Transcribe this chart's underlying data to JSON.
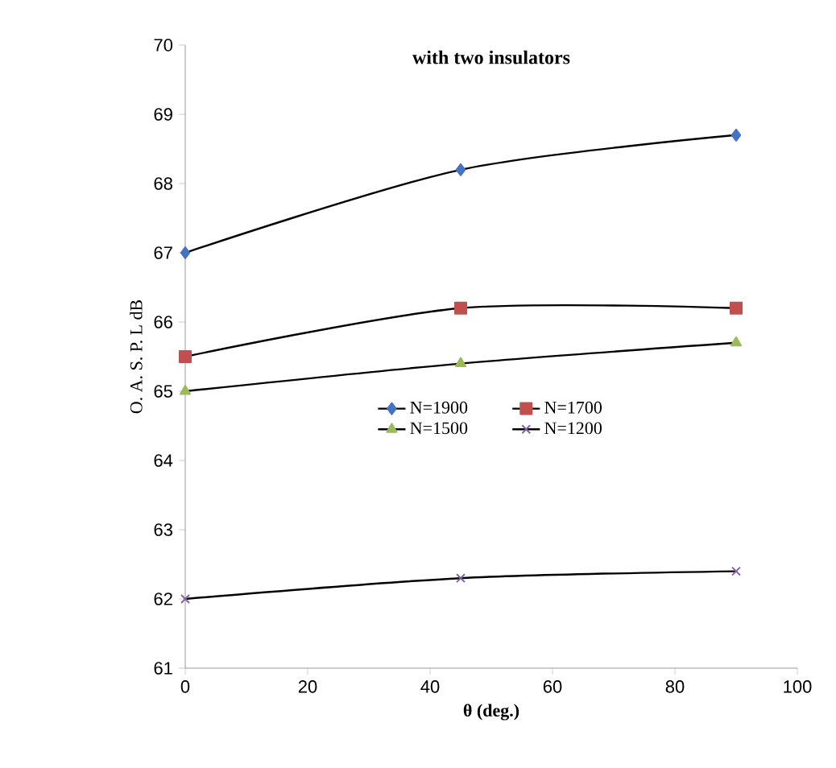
{
  "chart_data": {
    "type": "line",
    "title": "with two insulators",
    "xlabel": "θ  (deg.)",
    "ylabel": "O. A. S. P. L  dB",
    "x": [
      0,
      45,
      90
    ],
    "series": [
      {
        "name": "N=1900",
        "color": "#4472c4",
        "marker": "diamond",
        "values": [
          67.0,
          68.2,
          68.7
        ]
      },
      {
        "name": "N=1700",
        "color": "#c0504d",
        "marker": "square",
        "values": [
          65.5,
          66.2,
          66.2
        ]
      },
      {
        "name": "N=1500",
        "color": "#9bbb59",
        "marker": "triangle",
        "values": [
          65.0,
          65.4,
          65.7
        ]
      },
      {
        "name": "N=1200",
        "color": "#8064a2",
        "marker": "cross",
        "values": [
          62.0,
          62.3,
          62.4
        ]
      }
    ],
    "xlim": [
      0,
      100
    ],
    "xticks": [
      0,
      20,
      40,
      60,
      80,
      100
    ],
    "ylim": [
      61,
      70
    ],
    "yticks": [
      61,
      62,
      63,
      64,
      65,
      66,
      67,
      68,
      69,
      70
    ],
    "grid": false,
    "legend": "center",
    "line_style": "solid"
  }
}
